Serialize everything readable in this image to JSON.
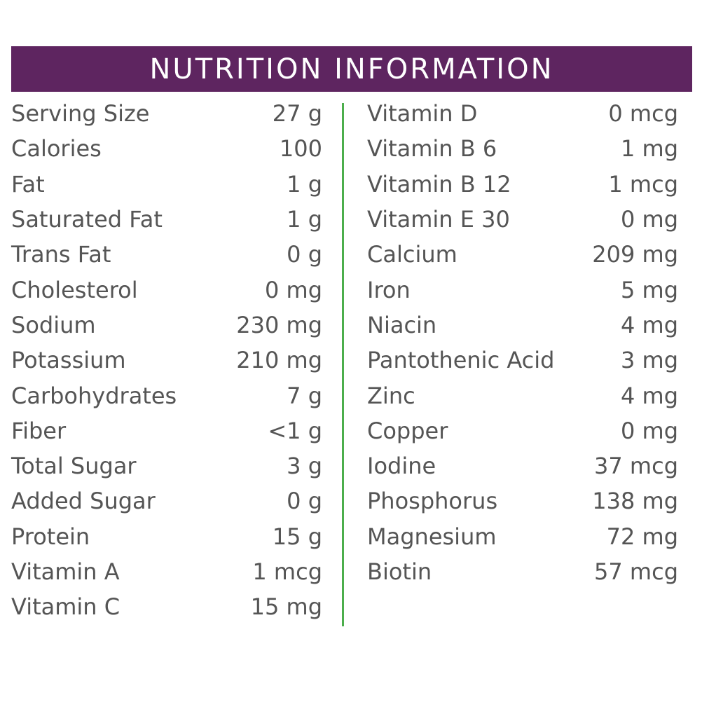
{
  "title": "NUTRITION INFORMATION",
  "colors": {
    "header_bg": "#5e2560",
    "divider": "#4cae4c",
    "text": "#555555"
  },
  "left_column": [
    {
      "label": "Serving Size",
      "value": "27 g"
    },
    {
      "label": "Calories",
      "value": "100"
    },
    {
      "label": "Fat",
      "value": "1 g"
    },
    {
      "label": "Saturated Fat",
      "value": "1 g"
    },
    {
      "label": "Trans Fat",
      "value": "0 g"
    },
    {
      "label": "Cholesterol",
      "value": "0 mg"
    },
    {
      "label": "Sodium",
      "value": "230 mg"
    },
    {
      "label": "Potassium",
      "value": "210 mg"
    },
    {
      "label": "Carbohydrates",
      "value": "7 g"
    },
    {
      "label": "Fiber",
      "value": "<1 g"
    },
    {
      "label": "Total Sugar",
      "value": "3 g"
    },
    {
      "label": "Added Sugar",
      "value": "0 g"
    },
    {
      "label": "Protein",
      "value": "15 g"
    },
    {
      "label": "Vitamin A",
      "value": "1 mcg"
    },
    {
      "label": "Vitamin C",
      "value": "15 mg"
    }
  ],
  "right_column": [
    {
      "label": "Vitamin D",
      "value": "0 mcg"
    },
    {
      "label": "Vitamin B 6",
      "value": "1 mg"
    },
    {
      "label": "Vitamin B 12",
      "value": "1 mcg"
    },
    {
      "label": "Vitamin E 30",
      "value": "0 mg"
    },
    {
      "label": "Calcium",
      "value": "209 mg"
    },
    {
      "label": "Iron",
      "value": "5 mg"
    },
    {
      "label": "Niacin",
      "value": "4 mg"
    },
    {
      "label": "Pantothenic Acid",
      "value": "3 mg"
    },
    {
      "label": "Zinc",
      "value": "4 mg"
    },
    {
      "label": "Copper",
      "value": "0 mg"
    },
    {
      "label": "Iodine",
      "value": "37 mcg"
    },
    {
      "label": "Phosphorus",
      "value": "138 mg"
    },
    {
      "label": "Magnesium",
      "value": "72 mg"
    },
    {
      "label": "Biotin",
      "value": "57 mcg"
    }
  ]
}
